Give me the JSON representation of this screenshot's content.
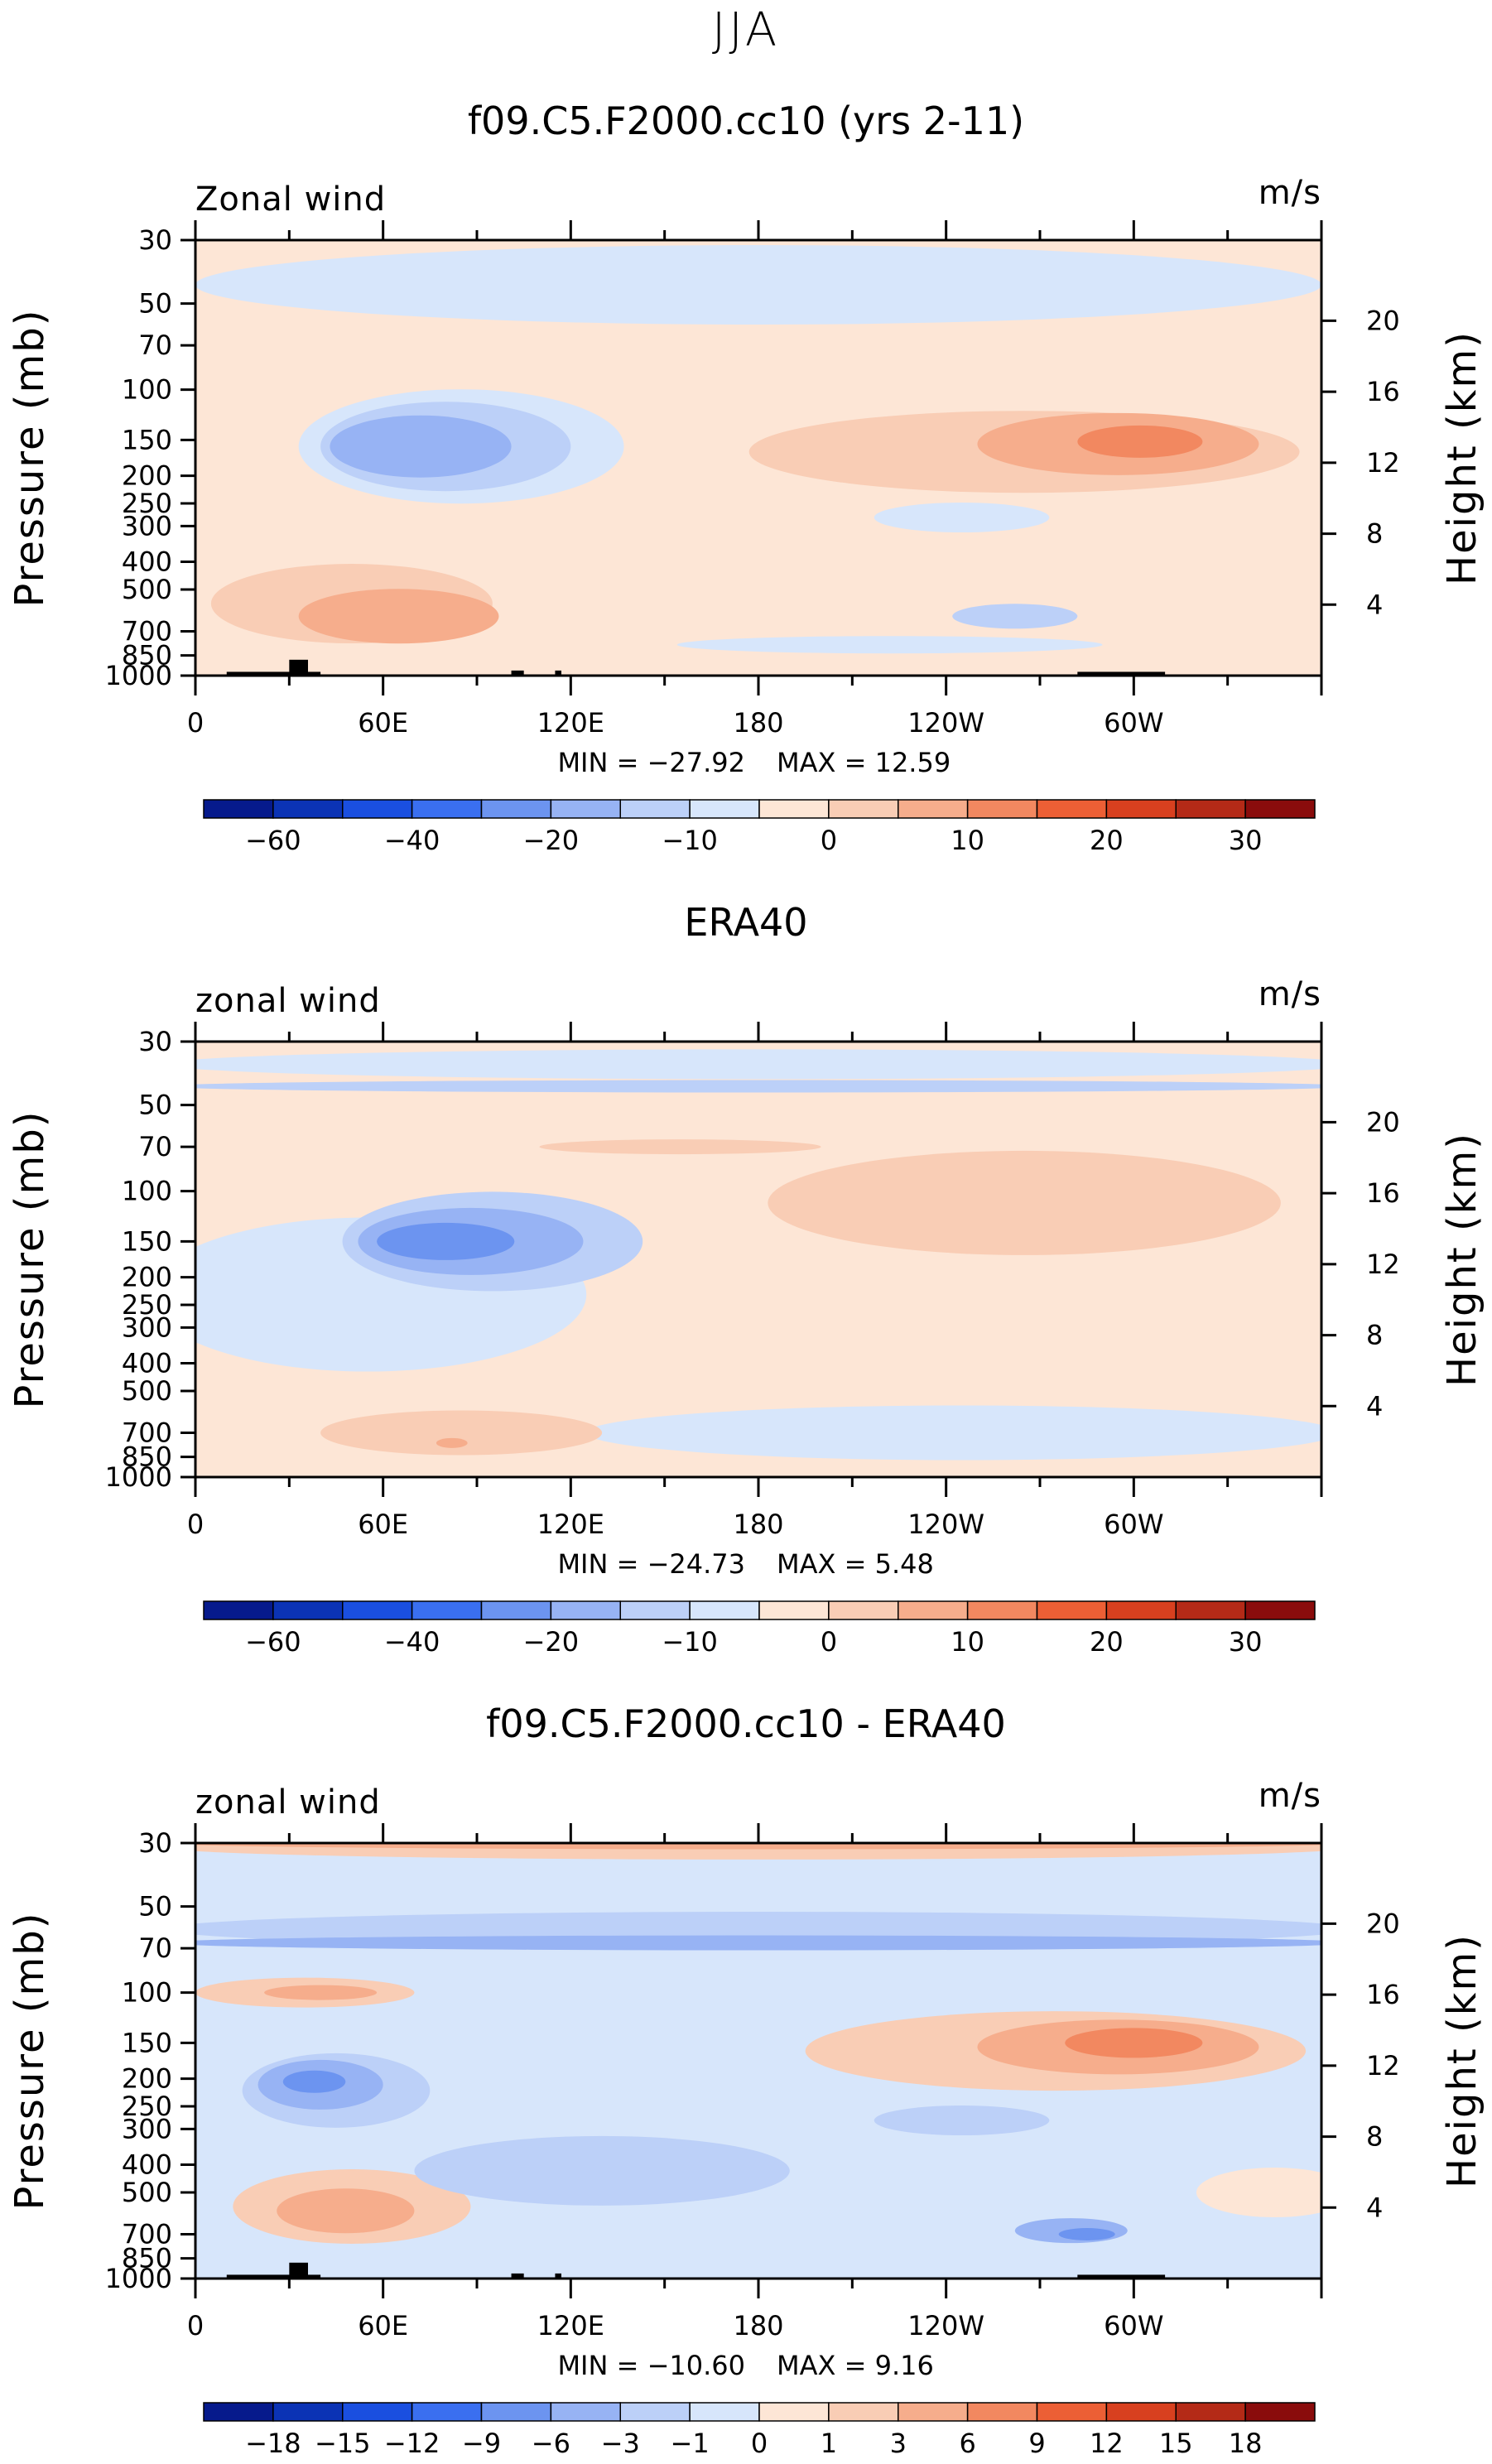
{
  "page": {
    "season_title": "JJA",
    "palette": {
      "blue": [
        "#061a8c",
        "#0b33b5",
        "#1a4fe0",
        "#3a6ff0",
        "#6c94f0",
        "#97b3f4",
        "#bcd0f8",
        "#d7e6fb"
      ],
      "red": [
        "#fde6d6",
        "#f9cdb5",
        "#f6ad8c",
        "#f28860",
        "#ec5f35",
        "#d8401f",
        "#b42a17",
        "#8a0c0c"
      ]
    }
  },
  "chart_data": [
    {
      "type": "heatmap",
      "title": "f09.C5.F2000.cc10 (yrs 2-11)",
      "field_label": "Zonal wind",
      "units_label": "m/s",
      "ylabel": "Pressure (mb)",
      "y2label": "Height (km)",
      "xticks": [
        "0",
        "60E",
        "120E",
        "180",
        "120W",
        "60W"
      ],
      "xtick_lon": [
        0,
        60,
        120,
        180,
        240,
        300
      ],
      "xlim": [
        0,
        360
      ],
      "yticks": [
        "30",
        "50",
        "70",
        "100",
        "150",
        "200",
        "250",
        "300",
        "400",
        "500",
        "700",
        "850",
        "1000"
      ],
      "ytick_p": [
        30,
        50,
        70,
        100,
        150,
        200,
        250,
        300,
        400,
        500,
        700,
        850,
        1000
      ],
      "ylim": [
        1000,
        30
      ],
      "y2ticks": [
        "20",
        "16",
        "12",
        "8",
        "4"
      ],
      "y2tick_km": [
        20,
        16,
        12,
        8,
        4
      ],
      "min_label": "MIN = −27.92",
      "max_label": "MAX =   12.59",
      "colorbar_labels": [
        "−60",
        "−40",
        "−20",
        "−10",
        "0",
        "10",
        "20",
        "30"
      ],
      "colorbar_label_index": [
        1,
        3,
        5,
        7,
        9,
        11,
        13,
        15
      ],
      "background_level": 1,
      "features": [
        {
          "lon": 180,
          "p": 43,
          "rx": 180,
          "ry": 0.32,
          "lvl": -1
        },
        {
          "lon": 85,
          "p": 158,
          "rx": 52,
          "ry": 0.46,
          "lvl": -1
        },
        {
          "lon": 80,
          "p": 158,
          "rx": 40,
          "ry": 0.36,
          "lvl": -2
        },
        {
          "lon": 72,
          "p": 158,
          "rx": 29,
          "ry": 0.25,
          "lvl": -3
        },
        {
          "lon": 245,
          "p": 280,
          "rx": 28,
          "ry": 0.12,
          "lvl": -1
        },
        {
          "lon": 222,
          "p": 780,
          "rx": 68,
          "ry": 0.07,
          "lvl": -1
        },
        {
          "lon": 262,
          "p": 620,
          "rx": 20,
          "ry": 0.1,
          "lvl": -2
        },
        {
          "lon": 265,
          "p": 165,
          "rx": 88,
          "ry": 0.33,
          "lvl": 2
        },
        {
          "lon": 295,
          "p": 155,
          "rx": 45,
          "ry": 0.25,
          "lvl": 3
        },
        {
          "lon": 302,
          "p": 152,
          "rx": 20,
          "ry": 0.13,
          "lvl": 4
        },
        {
          "lon": 50,
          "p": 560,
          "rx": 45,
          "ry": 0.32,
          "lvl": 2
        },
        {
          "lon": 65,
          "p": 620,
          "rx": 32,
          "ry": 0.22,
          "lvl": 3
        }
      ],
      "topography": [
        [
          10,
          40,
          970
        ],
        [
          30,
          36,
          880
        ],
        [
          101,
          105,
          960
        ],
        [
          115,
          117,
          960
        ],
        [
          282,
          310,
          970
        ]
      ]
    },
    {
      "type": "heatmap",
      "title": "ERA40",
      "field_label": "zonal wind",
      "units_label": "m/s",
      "ylabel": "Pressure (mb)",
      "y2label": "Height (km)",
      "xticks": [
        "0",
        "60E",
        "120E",
        "180",
        "120W",
        "60W"
      ],
      "xtick_lon": [
        0,
        60,
        120,
        180,
        240,
        300
      ],
      "xlim": [
        0,
        360
      ],
      "yticks": [
        "30",
        "50",
        "70",
        "100",
        "150",
        "200",
        "250",
        "300",
        "400",
        "500",
        "700",
        "850",
        "1000"
      ],
      "ytick_p": [
        30,
        50,
        70,
        100,
        150,
        200,
        250,
        300,
        400,
        500,
        700,
        850,
        1000
      ],
      "ylim": [
        1000,
        30
      ],
      "y2ticks": [
        "20",
        "16",
        "12",
        "8",
        "4"
      ],
      "y2tick_km": [
        20,
        16,
        12,
        8,
        4
      ],
      "min_label": "MIN = −24.73",
      "max_label": "MAX =    5.48",
      "colorbar_labels": [
        "−60",
        "−40",
        "−20",
        "−10",
        "0",
        "10",
        "20",
        "30"
      ],
      "colorbar_label_index": [
        1,
        3,
        5,
        7,
        9,
        11,
        13,
        15
      ],
      "background_level": 1,
      "features": [
        {
          "lon": 180,
          "p": 36,
          "rx": 190,
          "ry": 0.12,
          "lvl": -1
        },
        {
          "lon": 180,
          "p": 43,
          "rx": 190,
          "ry": 0.05,
          "lvl": -2
        },
        {
          "lon": 55,
          "p": 230,
          "rx": 70,
          "ry": 0.62,
          "lvl": -1
        },
        {
          "lon": 245,
          "p": 700,
          "rx": 120,
          "ry": 0.22,
          "lvl": -1
        },
        {
          "lon": 95,
          "p": 150,
          "rx": 48,
          "ry": 0.4,
          "lvl": -2
        },
        {
          "lon": 88,
          "p": 150,
          "rx": 36,
          "ry": 0.27,
          "lvl": -3
        },
        {
          "lon": 80,
          "p": 150,
          "rx": 22,
          "ry": 0.15,
          "lvl": -4
        },
        {
          "lon": 265,
          "p": 110,
          "rx": 82,
          "ry": 0.42,
          "lvl": 2
        },
        {
          "lon": 155,
          "p": 70,
          "rx": 45,
          "ry": 0.06,
          "lvl": 2
        },
        {
          "lon": 85,
          "p": 700,
          "rx": 45,
          "ry": 0.18,
          "lvl": 2
        },
        {
          "lon": 82,
          "p": 760,
          "rx": 5,
          "ry": 0.04,
          "lvl": 3
        }
      ],
      "topography": []
    },
    {
      "type": "heatmap",
      "title": "f09.C5.F2000.cc10 - ERA40",
      "field_label": "zonal wind",
      "units_label": "m/s",
      "ylabel": "Pressure (mb)",
      "y2label": "Height (km)",
      "xticks": [
        "0",
        "60E",
        "120E",
        "180",
        "120W",
        "60W"
      ],
      "xtick_lon": [
        0,
        60,
        120,
        180,
        240,
        300
      ],
      "xlim": [
        0,
        360
      ],
      "yticks": [
        "30",
        "50",
        "70",
        "100",
        "150",
        "200",
        "250",
        "300",
        "400",
        "500",
        "700",
        "850",
        "1000"
      ],
      "ytick_p": [
        30,
        50,
        70,
        100,
        150,
        200,
        250,
        300,
        400,
        500,
        700,
        850,
        1000
      ],
      "ylim": [
        1000,
        30
      ],
      "y2ticks": [
        "20",
        "16",
        "12",
        "8",
        "4"
      ],
      "y2tick_km": [
        20,
        16,
        12,
        8,
        4
      ],
      "min_label": "MIN = −10.60",
      "max_label": "MAX =    9.16",
      "colorbar_labels": [
        "−18",
        "−15",
        "−12",
        "−9",
        "−6",
        "−3",
        "−1",
        "0",
        "1",
        "3",
        "6",
        "9",
        "12",
        "15",
        "18"
      ],
      "colorbar_label_index": [
        1,
        2,
        3,
        4,
        5,
        6,
        7,
        8,
        9,
        10,
        11,
        12,
        13,
        14,
        15
      ],
      "background_level": -1,
      "features": [
        {
          "lon": 180,
          "p": 31,
          "rx": 190,
          "ry": 0.1,
          "lvl": 2
        },
        {
          "lon": 180,
          "p": 30,
          "rx": 190,
          "ry": 0.05,
          "lvl": 3
        },
        {
          "lon": 180,
          "p": 60,
          "rx": 190,
          "ry": 0.14,
          "lvl": -2
        },
        {
          "lon": 180,
          "p": 67,
          "rx": 190,
          "ry": 0.06,
          "lvl": -3
        },
        {
          "lon": 35,
          "p": 100,
          "rx": 35,
          "ry": 0.12,
          "lvl": 2
        },
        {
          "lon": 40,
          "p": 100,
          "rx": 18,
          "ry": 0.06,
          "lvl": 3
        },
        {
          "lon": 275,
          "p": 160,
          "rx": 80,
          "ry": 0.32,
          "lvl": 2
        },
        {
          "lon": 295,
          "p": 155,
          "rx": 45,
          "ry": 0.22,
          "lvl": 3
        },
        {
          "lon": 300,
          "p": 150,
          "rx": 22,
          "ry": 0.12,
          "lvl": 4
        },
        {
          "lon": 45,
          "p": 220,
          "rx": 30,
          "ry": 0.3,
          "lvl": -2
        },
        {
          "lon": 40,
          "p": 210,
          "rx": 20,
          "ry": 0.2,
          "lvl": -3
        },
        {
          "lon": 38,
          "p": 205,
          "rx": 10,
          "ry": 0.09,
          "lvl": -4
        },
        {
          "lon": 50,
          "p": 560,
          "rx": 38,
          "ry": 0.3,
          "lvl": 2
        },
        {
          "lon": 48,
          "p": 580,
          "rx": 22,
          "ry": 0.18,
          "lvl": 3
        },
        {
          "lon": 130,
          "p": 420,
          "rx": 60,
          "ry": 0.28,
          "lvl": -2
        },
        {
          "lon": 280,
          "p": 680,
          "rx": 18,
          "ry": 0.1,
          "lvl": -3
        },
        {
          "lon": 285,
          "p": 700,
          "rx": 9,
          "ry": 0.05,
          "lvl": -4
        },
        {
          "lon": 245,
          "p": 280,
          "rx": 28,
          "ry": 0.12,
          "lvl": -2
        },
        {
          "lon": 345,
          "p": 500,
          "rx": 25,
          "ry": 0.2,
          "lvl": 1
        }
      ],
      "topography": [
        [
          10,
          40,
          970
        ],
        [
          30,
          36,
          880
        ],
        [
          101,
          105,
          960
        ],
        [
          115,
          117,
          960
        ],
        [
          282,
          310,
          970
        ]
      ]
    }
  ]
}
